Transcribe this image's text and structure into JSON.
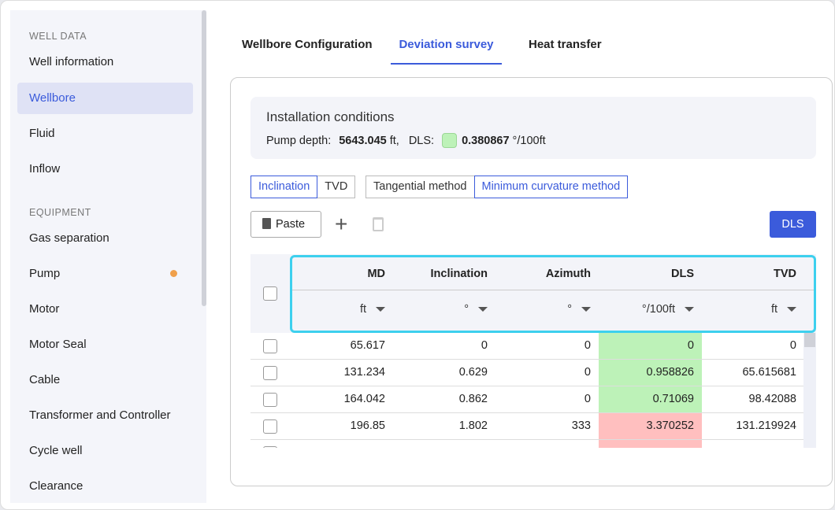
{
  "sidebar": {
    "sections": [
      {
        "title": "WELL DATA",
        "items": [
          "Well information",
          "Wellbore",
          "Fluid",
          "Inflow"
        ]
      },
      {
        "title": "EQUIPMENT",
        "items": [
          "Gas separation",
          "Pump",
          "Motor",
          "Motor Seal",
          "Cable",
          "Transformer and Controller",
          "Cycle well",
          "Clearance"
        ]
      }
    ],
    "active": "Wellbore"
  },
  "tabs": [
    "Wellbore Configuration",
    "Deviation survey",
    "Heat transfer"
  ],
  "active_tab": "Deviation survey",
  "install": {
    "title": "Installation conditions",
    "pump_label": "Pump depth:",
    "pump_value": "5643.045",
    "pump_unit": "ft,",
    "dls_label": "DLS:",
    "dls_value": "0.380867",
    "dls_unit": "°/100ft"
  },
  "toggles": {
    "mode": [
      "Inclination",
      "TVD"
    ],
    "method": [
      "Tangential method",
      "Minimum curvature method"
    ]
  },
  "toolbar": {
    "paste": "Paste",
    "dls": "DLS"
  },
  "table": {
    "headers": [
      "MD",
      "Inclination",
      "Azimuth",
      "DLS",
      "TVD"
    ],
    "units": [
      "ft",
      "°",
      "°",
      "°/100ft",
      "ft"
    ],
    "rows": [
      {
        "cells": [
          "65.617",
          "0",
          "0",
          "0",
          "0"
        ],
        "dls_status": "ok"
      },
      {
        "cells": [
          "131.234",
          "0.629",
          "0",
          "0.958826",
          "65.615681"
        ],
        "dls_status": "ok"
      },
      {
        "cells": [
          "164.042",
          "0.862",
          "0",
          "0.71069",
          "98.42088"
        ],
        "dls_status": "ok"
      },
      {
        "cells": [
          "196.85",
          "1.802",
          "333",
          "3.370252",
          "131.219924"
        ],
        "dls_status": "high"
      }
    ]
  },
  "colors": {
    "accent": "#3b5bdb",
    "ok": "#bdf2b8",
    "high": "#ffbfbf",
    "highlight": "#3dd0ee"
  }
}
